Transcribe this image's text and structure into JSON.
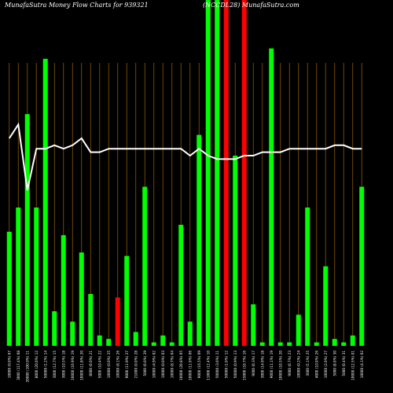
{
  "chart_data": {
    "type": "bar",
    "title": "MunafaSutra  Money Flow  Charts for 939321",
    "subtitle": "(NCCDL28) MunafaSutra.com",
    "ylim": [
      0,
      100
    ],
    "grid": "vertical",
    "colors": {
      "background": "#000000",
      "up": "#00ff00",
      "down": "#ff0000",
      "grid": "#8a5a00",
      "line": "#ffffff",
      "text": "#ffffff"
    },
    "categories": [
      "10000 (0.0%) 07",
      "3000 (117.4%) 08",
      "20000 (100.0%) 11",
      "8000 (20.0%) 12",
      "50000 (1.2%) 14",
      "3000 (12.7%) 15",
      "3000 (10.5%) 18",
      "10000 (16.9%) 19",
      "10000 (11.8%) 20",
      "8000 (0.0%) 21",
      "5000 (10.4%) 22",
      "10000 (0.0%) 25",
      "10000 (8.1%) 26",
      "9000 (11.9%) 27",
      "21000 (0.0%) 28",
      "5000 (0.0%) 29",
      "10000 (4.9%) 02",
      "10000 (0.0%) 03",
      "10000 (8.7%) 04",
      "10000 (20.8%) 05",
      "10000 (11.6%) 06",
      "9000 (16.5%) 09",
      "11000 (12.4%) 10",
      "50000 (3.0%) 11",
      "50000 (1.0%) 12",
      "50000 (0.9%) 13",
      "15000 (10.7%) 16",
      "9000 (0.3%) 17",
      "3000 (14.9%) 18",
      "9000 (11.1%) 19",
      "10000 (10.5%) 20",
      "9000 (0.7%) 23",
      "10000 (0.2%) 24",
      "3000 (5.1%) 25",
      "4000 (10.0%) 26",
      "10000 (2.0%) 27",
      "5000 (8.0%) 30",
      "5000 (0.4%) 31",
      "10000 (12.5%) 01",
      "10000 (4.1%) 02"
    ],
    "values": [
      33,
      40,
      67,
      40,
      83,
      10,
      32,
      7,
      27,
      15,
      3,
      2,
      14,
      26,
      4,
      46,
      1,
      3,
      1,
      35,
      7,
      61,
      100,
      100,
      100,
      55,
      100,
      12,
      1,
      86,
      1,
      1,
      9,
      40,
      1,
      23,
      2,
      1,
      3,
      46
    ],
    "bar_colors": [
      "up",
      "up",
      "up",
      "up",
      "up",
      "up",
      "up",
      "up",
      "up",
      "up",
      "up",
      "up",
      "down",
      "up",
      "up",
      "up",
      "up",
      "up",
      "up",
      "up",
      "up",
      "up",
      "up",
      "up",
      "down",
      "up",
      "down",
      "up",
      "up",
      "up",
      "up",
      "up",
      "up",
      "up",
      "up",
      "up",
      "up",
      "up",
      "up",
      "up"
    ],
    "line_values": [
      60,
      64,
      45,
      57,
      57,
      58,
      57,
      58,
      60,
      56,
      56,
      57,
      57,
      57,
      57,
      57,
      57,
      57,
      57,
      57,
      55,
      57,
      55,
      54,
      54,
      54,
      55,
      55,
      56,
      56,
      56,
      57,
      57,
      57,
      57,
      57,
      58,
      58,
      57,
      57
    ]
  }
}
